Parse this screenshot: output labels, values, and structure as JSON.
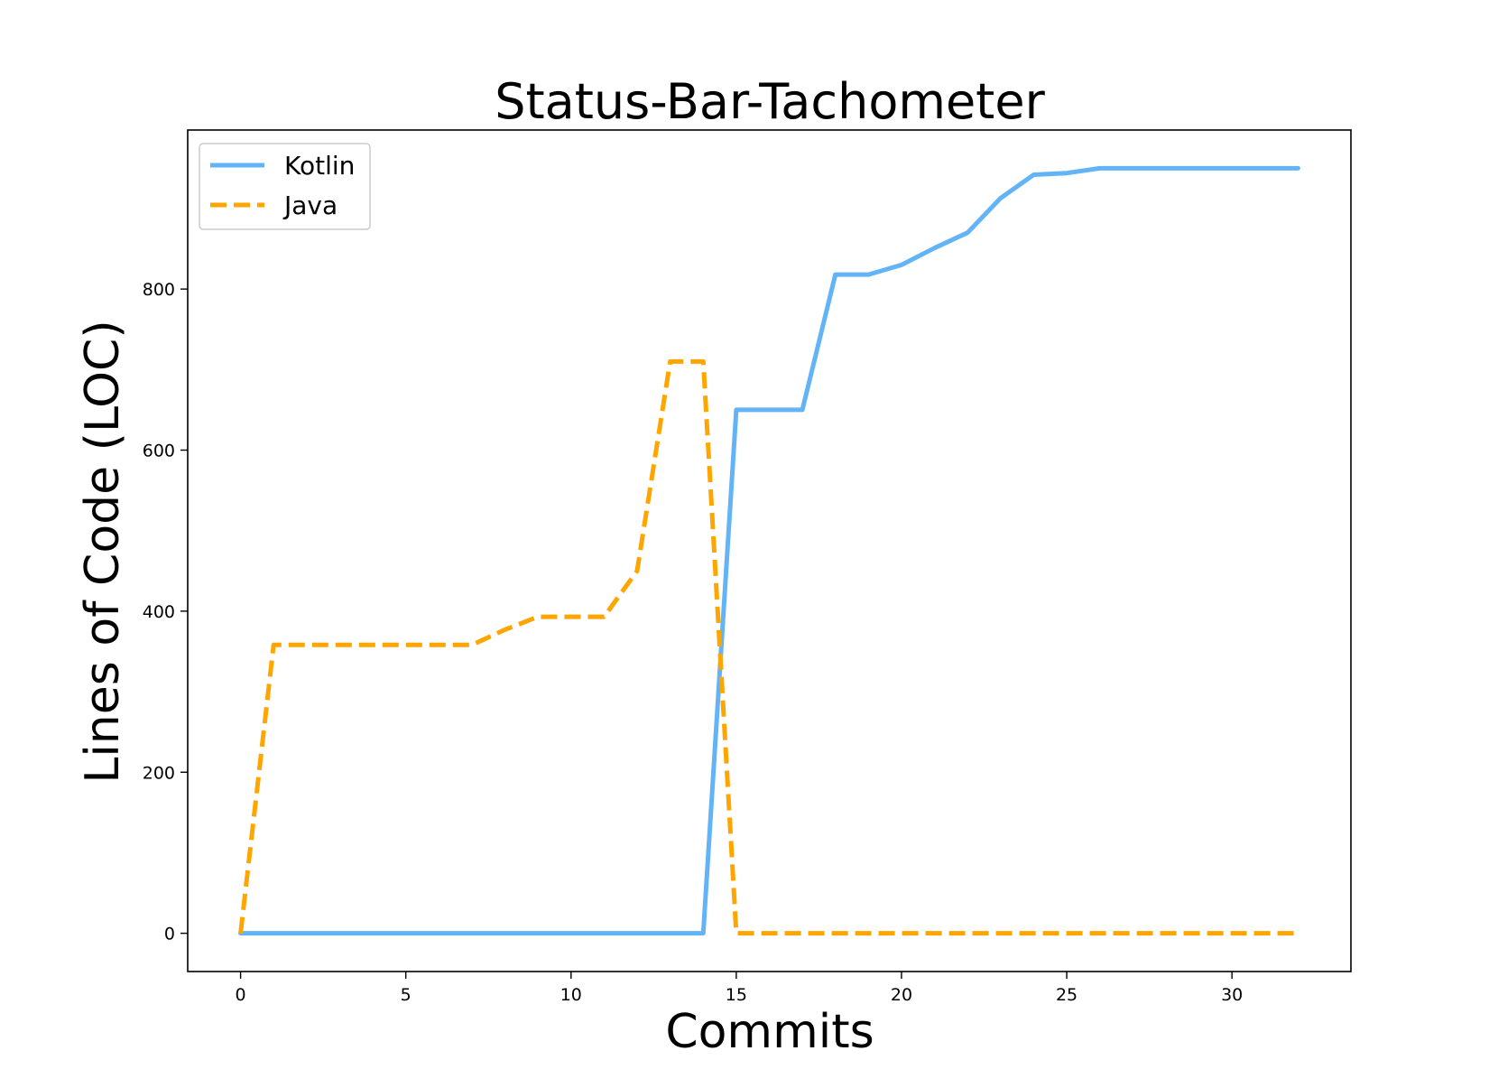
{
  "chart_data": {
    "type": "line",
    "title": "Status-Bar-Tachometer",
    "xlabel": "Commits",
    "ylabel": "Lines of Code (LOC)",
    "xlim": [
      -1.6,
      33.6
    ],
    "ylim": [
      -47.5,
      997.5
    ],
    "xticks": [
      0,
      5,
      10,
      15,
      20,
      25,
      30
    ],
    "yticks": [
      0,
      200,
      400,
      600,
      800
    ],
    "grid": false,
    "legend_position": "top-left",
    "x": [
      0,
      1,
      2,
      3,
      4,
      5,
      6,
      7,
      8,
      9,
      10,
      11,
      12,
      13,
      14,
      15,
      16,
      17,
      18,
      19,
      20,
      21,
      22,
      23,
      24,
      25,
      26,
      27,
      28,
      29,
      30,
      31,
      32
    ],
    "series": [
      {
        "name": "Kotlin",
        "color": "#63b3f7",
        "line_style": "solid",
        "values": [
          0,
          0,
          0,
          0,
          0,
          0,
          0,
          0,
          0,
          0,
          0,
          0,
          0,
          0,
          0,
          650,
          650,
          650,
          818,
          818,
          830,
          851,
          870,
          913,
          942,
          944,
          950,
          950,
          950,
          950,
          950,
          950,
          950
        ]
      },
      {
        "name": "Java",
        "color": "#ffa500",
        "line_style": "dashed",
        "values": [
          0,
          358,
          358,
          358,
          358,
          358,
          358,
          358,
          377,
          393,
          393,
          393,
          450,
          710,
          710,
          0,
          0,
          0,
          0,
          0,
          0,
          0,
          0,
          0,
          0,
          0,
          0,
          0,
          0,
          0,
          0,
          0,
          0
        ]
      }
    ]
  }
}
